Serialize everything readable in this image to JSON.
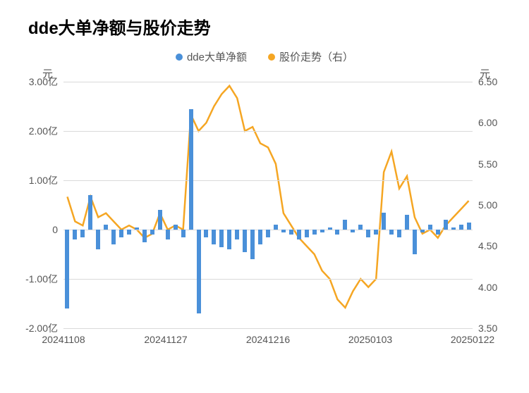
{
  "chart": {
    "title": "dde大单净额与股价走势",
    "legend": {
      "series1": {
        "label": "dde大单净额",
        "color": "#4a90d9"
      },
      "series2": {
        "label": "股价走势（右）",
        "color": "#f5a623"
      }
    },
    "left_axis": {
      "label": "元",
      "ticks": [
        "3.00亿",
        "2.00亿",
        "1.00亿",
        "0",
        "-1.00亿",
        "-2.00亿"
      ],
      "min": -2.0,
      "max": 3.0
    },
    "right_axis": {
      "label": "元",
      "ticks": [
        "6.50",
        "6.00",
        "5.50",
        "5.00",
        "4.50",
        "4.00",
        "3.50"
      ],
      "min": 3.5,
      "max": 6.5
    },
    "x_axis": {
      "ticks": [
        "20241108",
        "20241127",
        "20241216",
        "20250103",
        "20250122"
      ]
    },
    "bar_color": "#4a90d9",
    "line_color": "#f5a623",
    "grid_color": "#d9d9d9",
    "background_color": "#ffffff",
    "bars": [
      -1.6,
      -0.2,
      -0.15,
      0.7,
      -0.4,
      0.1,
      -0.3,
      -0.15,
      -0.1,
      0.05,
      -0.25,
      -0.1,
      0.4,
      -0.2,
      0.1,
      -0.15,
      2.45,
      -1.7,
      -0.15,
      -0.3,
      -0.35,
      -0.4,
      -0.2,
      -0.45,
      -0.6,
      -0.3,
      -0.15,
      0.1,
      -0.05,
      -0.1,
      -0.2,
      -0.15,
      -0.1,
      -0.05,
      0.05,
      -0.1,
      0.2,
      -0.05,
      0.1,
      -0.15,
      -0.1,
      0.35,
      -0.1,
      -0.15,
      0.3,
      -0.5,
      -0.05,
      0.1,
      -0.1,
      0.2,
      0.05,
      0.1,
      0.15
    ],
    "line": [
      5.1,
      4.8,
      4.75,
      5.1,
      4.85,
      4.9,
      4.8,
      4.7,
      4.75,
      4.7,
      4.6,
      4.65,
      4.9,
      4.7,
      4.75,
      4.7,
      6.1,
      5.9,
      6.0,
      6.2,
      6.35,
      6.45,
      6.3,
      5.9,
      5.95,
      5.75,
      5.7,
      5.5,
      4.9,
      4.75,
      4.6,
      4.5,
      4.4,
      4.2,
      4.1,
      3.85,
      3.75,
      3.95,
      4.1,
      4.0,
      4.1,
      5.4,
      5.65,
      5.2,
      5.35,
      4.85,
      4.65,
      4.7,
      4.6,
      4.75,
      4.85,
      4.95,
      5.05
    ],
    "title_fontsize": 24,
    "label_fontsize": 15,
    "tick_fontsize": 14
  }
}
